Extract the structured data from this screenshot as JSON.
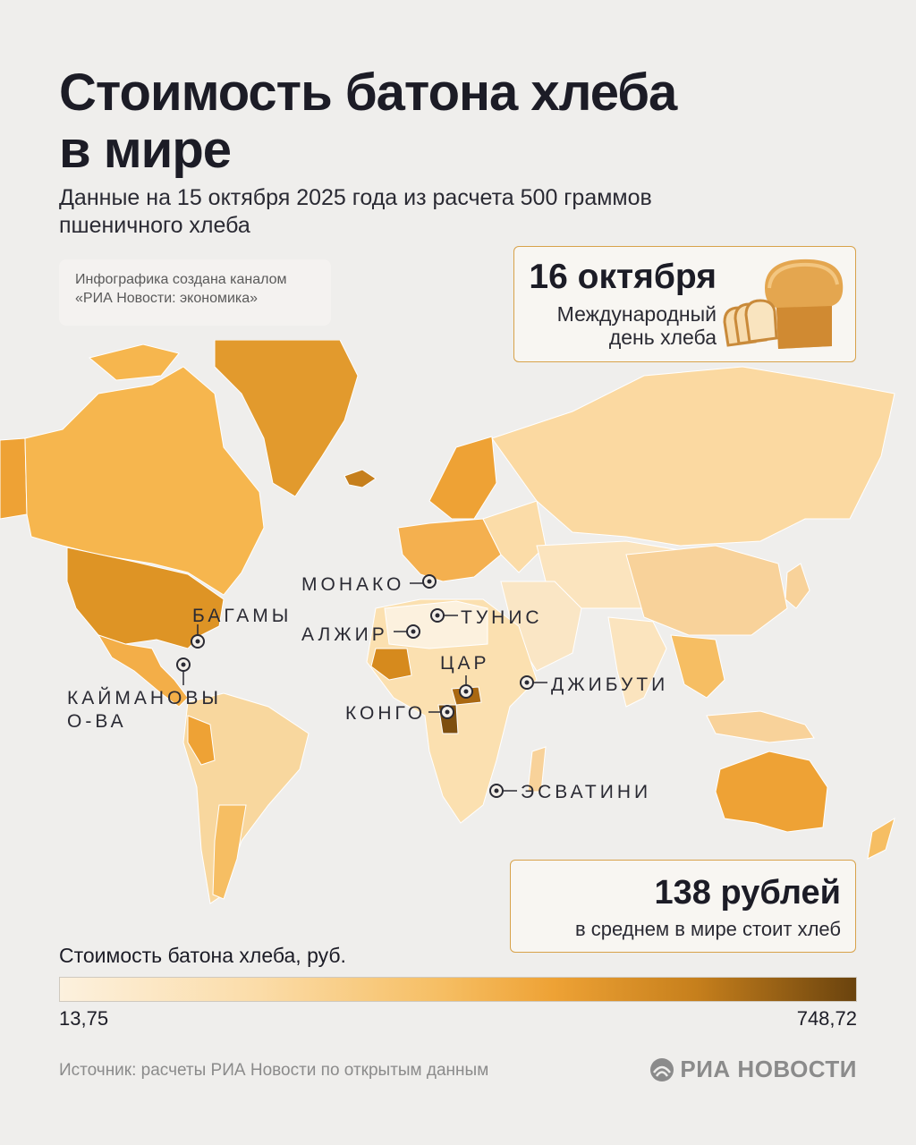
{
  "header": {
    "title": "Стоимость батона хлеба\nв мире",
    "subtitle": "Данные на 15 октября 2025 года из расчета 500 граммов пшеничного хлеба"
  },
  "credit": "Инфографика создана каналом «РИА Новости: экономика»",
  "holiday": {
    "date": "16 октября",
    "label": "Международный день хлеба",
    "icon": "bread-icon"
  },
  "callouts": [
    {
      "id": "monaco",
      "label": "МОНАКО"
    },
    {
      "id": "bahamas",
      "label": "БАГАМЫ"
    },
    {
      "id": "tunisia",
      "label": "ТУНИС"
    },
    {
      "id": "algeria",
      "label": "АЛЖИР"
    },
    {
      "id": "car",
      "label": "ЦАР"
    },
    {
      "id": "djibouti",
      "label": "ДЖИБУТИ"
    },
    {
      "id": "cayman",
      "label": "КАЙМАНОВЫ\nО-ВА"
    },
    {
      "id": "congo",
      "label": "КОНГО"
    },
    {
      "id": "eswatini",
      "label": "ЭСВАТИНИ"
    }
  ],
  "average": {
    "value": "138 рублей",
    "caption": "в среднем в мире стоит хлеб"
  },
  "legend": {
    "title": "Стоимость батона хлеба, руб.",
    "min": "13,75",
    "max": "748,72",
    "colors": [
      "#fcf1de",
      "#fbdca8",
      "#f6be63",
      "#eea235",
      "#c67f1c",
      "#6a430e"
    ]
  },
  "footer": {
    "source": "Источник: расчеты РИА Новости по открытым данным",
    "brand": "РИА НОВОСТИ"
  }
}
